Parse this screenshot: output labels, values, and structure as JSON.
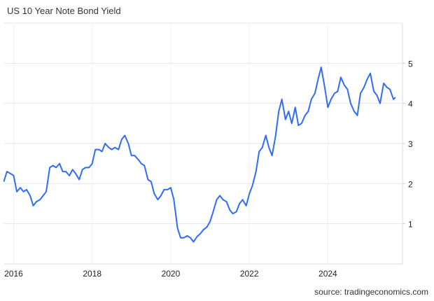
{
  "chart_data": {
    "type": "line",
    "title": "US 10 Year Note Bond Yield",
    "source": "source: tradingeconomics.com",
    "xlabel": "",
    "ylabel": "",
    "xlim": [
      2015.76,
      2025.9
    ],
    "ylim": [
      0,
      6
    ],
    "x_ticks": [
      2016,
      2018,
      2020,
      2022,
      2024
    ],
    "x_tick_labels": [
      "2016",
      "2018",
      "2020",
      "2022",
      "2024"
    ],
    "y_ticks": [
      1,
      2,
      3,
      4,
      5
    ],
    "y_tick_labels": [
      "1",
      "2",
      "3",
      "4",
      "5"
    ],
    "grid": true,
    "series": [
      {
        "name": "US 10 Year Note Bond Yield",
        "color": "#2f6bff",
        "x": [
          2015.75,
          2015.83,
          2015.92,
          2016.0,
          2016.08,
          2016.17,
          2016.25,
          2016.33,
          2016.42,
          2016.5,
          2016.58,
          2016.67,
          2016.75,
          2016.83,
          2016.92,
          2017.0,
          2017.08,
          2017.17,
          2017.25,
          2017.33,
          2017.42,
          2017.5,
          2017.58,
          2017.67,
          2017.75,
          2017.83,
          2017.92,
          2018.0,
          2018.08,
          2018.17,
          2018.25,
          2018.33,
          2018.42,
          2018.5,
          2018.58,
          2018.67,
          2018.75,
          2018.83,
          2018.92,
          2019.0,
          2019.08,
          2019.17,
          2019.25,
          2019.33,
          2019.42,
          2019.5,
          2019.58,
          2019.67,
          2019.75,
          2019.83,
          2019.92,
          2020.0,
          2020.08,
          2020.17,
          2020.25,
          2020.33,
          2020.42,
          2020.5,
          2020.58,
          2020.67,
          2020.75,
          2020.83,
          2020.92,
          2021.0,
          2021.08,
          2021.17,
          2021.25,
          2021.33,
          2021.42,
          2021.5,
          2021.58,
          2021.67,
          2021.75,
          2021.83,
          2021.92,
          2022.0,
          2022.08,
          2022.17,
          2022.25,
          2022.33,
          2022.42,
          2022.5,
          2022.58,
          2022.67,
          2022.75,
          2022.83,
          2022.92,
          2023.0,
          2023.08,
          2023.17,
          2023.25,
          2023.33,
          2023.42,
          2023.5,
          2023.58,
          2023.67,
          2023.75,
          2023.83,
          2023.92,
          2024.0,
          2024.08,
          2024.17,
          2024.25,
          2024.33,
          2024.42,
          2024.5,
          2024.58,
          2024.67,
          2024.75,
          2024.83,
          2024.92,
          2025.0,
          2025.08,
          2025.17,
          2025.25,
          2025.33,
          2025.42,
          2025.5,
          2025.58,
          2025.67,
          2025.72
        ],
        "y": [
          2.05,
          2.3,
          2.25,
          2.2,
          1.8,
          1.9,
          1.8,
          1.85,
          1.7,
          1.45,
          1.55,
          1.6,
          1.7,
          1.8,
          2.4,
          2.45,
          2.4,
          2.5,
          2.3,
          2.3,
          2.2,
          2.35,
          2.25,
          2.1,
          2.35,
          2.4,
          2.4,
          2.5,
          2.85,
          2.85,
          2.8,
          3.0,
          2.9,
          2.85,
          2.9,
          2.85,
          3.1,
          3.2,
          3.0,
          2.7,
          2.7,
          2.6,
          2.5,
          2.45,
          2.1,
          2.05,
          1.75,
          1.6,
          1.7,
          1.85,
          1.85,
          1.9,
          1.6,
          0.9,
          0.65,
          0.65,
          0.7,
          0.65,
          0.55,
          0.68,
          0.75,
          0.85,
          0.92,
          1.05,
          1.3,
          1.6,
          1.7,
          1.6,
          1.55,
          1.35,
          1.25,
          1.3,
          1.5,
          1.6,
          1.45,
          1.75,
          1.95,
          2.3,
          2.8,
          2.9,
          3.2,
          2.9,
          2.7,
          3.2,
          3.8,
          4.1,
          3.6,
          3.8,
          3.5,
          3.9,
          3.45,
          3.5,
          3.7,
          3.8,
          4.1,
          4.25,
          4.6,
          4.9,
          4.4,
          3.9,
          4.1,
          4.25,
          4.3,
          4.65,
          4.45,
          4.35,
          4.0,
          3.8,
          3.7,
          4.25,
          4.4,
          4.6,
          4.75,
          4.3,
          4.2,
          4.0,
          4.5,
          4.4,
          4.35,
          4.1,
          4.15
        ]
      }
    ]
  }
}
